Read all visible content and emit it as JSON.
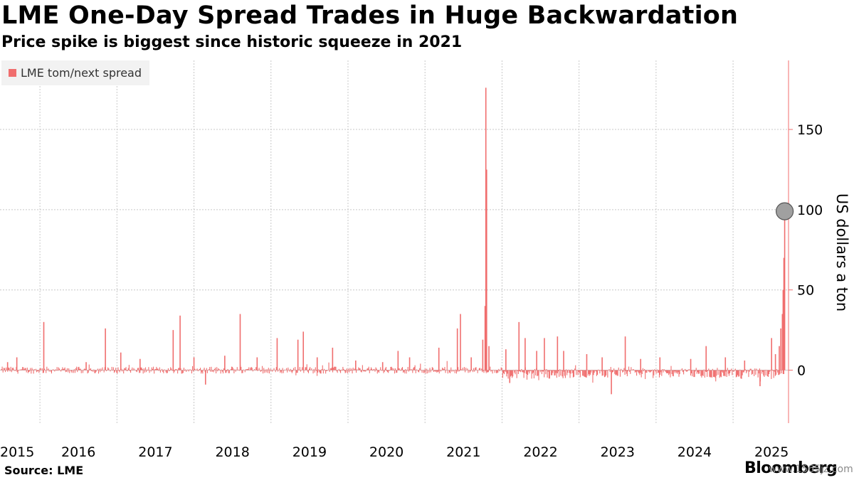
{
  "header": {
    "title": "LME One-Day Spread Trades in Huge Backwardation",
    "subtitle": "Price spike is biggest since historic squeeze in 2021"
  },
  "footer": {
    "source": "Source: LME",
    "brand": "Bloomberg",
    "watermark": "www.1565jz.com"
  },
  "colors": {
    "series": "#f06e6e",
    "grid": "#c8c8c8",
    "marker_fill": "#a0a0a0",
    "legend_bg": "#f2f2f2"
  },
  "chart_data": {
    "type": "bar",
    "title": "LME One-Day Spread Trades in Huge Backwardation",
    "subtitle": "Price spike is biggest since historic squeeze in 2021",
    "ylabel": "US dollars a ton",
    "ylim": [
      -33,
      193
    ],
    "y_ticks": [
      0,
      50,
      100,
      150
    ],
    "x_tick_labels": [
      "2015",
      "2016",
      "2017",
      "2018",
      "2019",
      "2020",
      "2021",
      "2022",
      "2023",
      "2024",
      "2025"
    ],
    "x_range": [
      2015.0,
      2025.22
    ],
    "grid": true,
    "legend_position": "top-left",
    "series": [
      {
        "name": "LME tom/next spread",
        "baseline": 0,
        "spikes": [
          {
            "x": 2015.08,
            "y": 5
          },
          {
            "x": 2015.2,
            "y": 8
          },
          {
            "x": 2015.55,
            "y": 30
          },
          {
            "x": 2016.1,
            "y": 5
          },
          {
            "x": 2016.35,
            "y": 26
          },
          {
            "x": 2016.55,
            "y": 11
          },
          {
            "x": 2016.8,
            "y": 7
          },
          {
            "x": 2017.23,
            "y": 25
          },
          {
            "x": 2017.32,
            "y": 34
          },
          {
            "x": 2017.5,
            "y": 8
          },
          {
            "x": 2017.65,
            "y": -9
          },
          {
            "x": 2017.9,
            "y": 9
          },
          {
            "x": 2018.1,
            "y": 35
          },
          {
            "x": 2018.32,
            "y": 8
          },
          {
            "x": 2018.58,
            "y": 20
          },
          {
            "x": 2018.85,
            "y": 19
          },
          {
            "x": 2018.92,
            "y": 24
          },
          {
            "x": 2019.1,
            "y": 8
          },
          {
            "x": 2019.3,
            "y": 14
          },
          {
            "x": 2019.6,
            "y": 6
          },
          {
            "x": 2019.95,
            "y": 5
          },
          {
            "x": 2020.15,
            "y": 12
          },
          {
            "x": 2020.3,
            "y": 8
          },
          {
            "x": 2020.68,
            "y": 14
          },
          {
            "x": 2020.92,
            "y": 26
          },
          {
            "x": 2020.96,
            "y": 35
          },
          {
            "x": 2021.1,
            "y": 8
          },
          {
            "x": 2021.25,
            "y": 19
          },
          {
            "x": 2021.28,
            "y": 40
          },
          {
            "x": 2021.29,
            "y": 176
          },
          {
            "x": 2021.3,
            "y": 125
          },
          {
            "x": 2021.33,
            "y": 15
          },
          {
            "x": 2021.55,
            "y": 13
          },
          {
            "x": 2021.6,
            "y": -8
          },
          {
            "x": 2021.72,
            "y": 30
          },
          {
            "x": 2021.8,
            "y": 20
          },
          {
            "x": 2021.95,
            "y": 12
          },
          {
            "x": 2022.05,
            "y": 20
          },
          {
            "x": 2022.22,
            "y": 21
          },
          {
            "x": 2022.3,
            "y": 12
          },
          {
            "x": 2022.6,
            "y": 10
          },
          {
            "x": 2022.8,
            "y": 8
          },
          {
            "x": 2022.92,
            "y": -15
          },
          {
            "x": 2023.1,
            "y": 21
          },
          {
            "x": 2023.3,
            "y": 7
          },
          {
            "x": 2023.55,
            "y": 8
          },
          {
            "x": 2023.95,
            "y": 7
          },
          {
            "x": 2024.15,
            "y": 15
          },
          {
            "x": 2024.4,
            "y": 8
          },
          {
            "x": 2024.65,
            "y": 6
          },
          {
            "x": 2024.85,
            "y": -10
          },
          {
            "x": 2025.0,
            "y": 20
          },
          {
            "x": 2025.05,
            "y": 10
          },
          {
            "x": 2025.1,
            "y": 15
          },
          {
            "x": 2025.12,
            "y": 26
          },
          {
            "x": 2025.14,
            "y": 35
          },
          {
            "x": 2025.15,
            "y": 50
          },
          {
            "x": 2025.16,
            "y": 70
          },
          {
            "x": 2025.17,
            "y": 99
          }
        ],
        "latest": {
          "x": 2025.17,
          "y": 99
        }
      }
    ]
  }
}
